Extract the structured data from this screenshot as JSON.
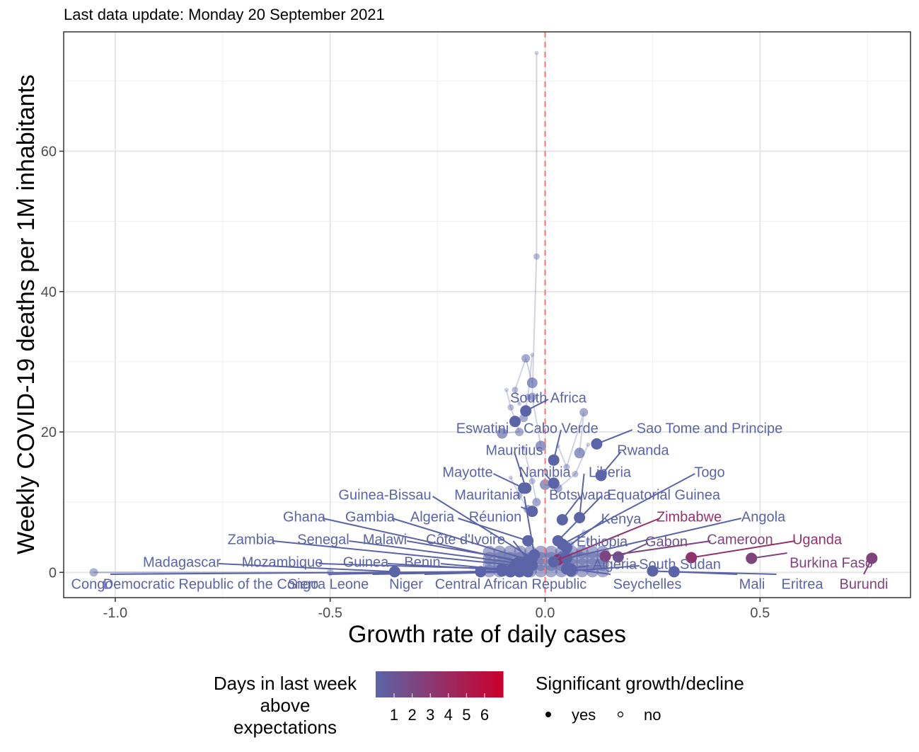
{
  "subtitle": "Last data update: Monday 20 September 2021",
  "chart_data": {
    "type": "scatter",
    "title": "",
    "xlabel": "Growth rate of daily cases",
    "ylabel": "Weekly COVID-19 deaths per 1M inhabitants",
    "xlim": [
      -1.12,
      0.85
    ],
    "ylim": [
      -3.6,
      77
    ],
    "x_ticks": [
      -1.0,
      -0.5,
      0.0,
      0.5
    ],
    "x_tick_labels": [
      "-1.0",
      "-0.5",
      "0.0",
      "0.5"
    ],
    "y_ticks": [
      0,
      20,
      40,
      60
    ],
    "y_tick_labels": [
      "0",
      "20",
      "40",
      "60"
    ],
    "grid": true,
    "reference_line": {
      "x": 0,
      "style": "dashed",
      "color": "#f8766d"
    },
    "colors": {
      "low": "#5b64a6",
      "high": "#c8002d",
      "mid": "#9e4a6e"
    },
    "legend_color": {
      "title_lines": [
        "Days in last week",
        "above",
        "expectations"
      ],
      "labels": [
        "1",
        "2",
        "3",
        "4",
        "5",
        "6"
      ]
    },
    "legend_shape": {
      "title": "Significant growth/decline",
      "entries": [
        "yes",
        "no"
      ]
    },
    "points": [
      {
        "label": "South Africa",
        "x": -0.045,
        "y": 23.0,
        "days": 1
      },
      {
        "label": "Eswatini",
        "x": -0.07,
        "y": 21.5,
        "days": 1
      },
      {
        "label": "Cabo Verde",
        "x": 0.02,
        "y": 16.0,
        "days": 1
      },
      {
        "label": "Sao Tome and Principe",
        "x": 0.12,
        "y": 18.3,
        "days": 1
      },
      {
        "label": "Mauritius",
        "x": -0.045,
        "y": 12.0,
        "days": 1
      },
      {
        "label": "Rwanda",
        "x": 0.13,
        "y": 13.8,
        "days": 1
      },
      {
        "label": "Mayotte",
        "x": -0.05,
        "y": 12.0,
        "days": 1
      },
      {
        "label": "Namibia",
        "x": 0.02,
        "y": 12.7,
        "days": 1
      },
      {
        "label": "Liberia",
        "x": 0.08,
        "y": 7.8,
        "days": 1
      },
      {
        "label": "Togo",
        "x": 0.04,
        "y": 4.0,
        "days": 1
      },
      {
        "label": "Guinea-Bissau",
        "x": -0.03,
        "y": 2.0,
        "days": 1
      },
      {
        "label": "Mauritania",
        "x": -0.025,
        "y": 2.5,
        "days": 1
      },
      {
        "label": "Botswana",
        "x": 0.04,
        "y": 7.5,
        "days": 1
      },
      {
        "label": "Equatorial Guinea",
        "x": 0.03,
        "y": 4.5,
        "days": 1
      },
      {
        "label": "Ghana",
        "x": -0.06,
        "y": 1.5,
        "days": 1
      },
      {
        "label": "Gambia",
        "x": -0.04,
        "y": 1.8,
        "days": 1
      },
      {
        "label": "Algeria",
        "x": -0.04,
        "y": 4.5,
        "days": 1
      },
      {
        "label": "Réunion",
        "x": -0.03,
        "y": 8.7,
        "days": 1
      },
      {
        "label": "Kenya",
        "x": 0.05,
        "y": 3.5,
        "days": 1
      },
      {
        "label": "Zimbabwe",
        "x": 0.03,
        "y": 1.8,
        "days": 4
      },
      {
        "label": "Angola",
        "x": 0.05,
        "y": 2.0,
        "days": 1
      },
      {
        "label": "Zambia",
        "x": -0.07,
        "y": 1.0,
        "days": 1
      },
      {
        "label": "Senegal",
        "x": -0.05,
        "y": 1.2,
        "days": 1
      },
      {
        "label": "Malawi",
        "x": -0.04,
        "y": 1.5,
        "days": 1
      },
      {
        "label": "Côte d'Ivoire",
        "x": -0.03,
        "y": 1.0,
        "days": 1
      },
      {
        "label": "Ethiopia",
        "x": 0.02,
        "y": 1.5,
        "days": 1
      },
      {
        "label": "Gabon",
        "x": 0.17,
        "y": 2.2,
        "days": 2
      },
      {
        "label": "Cameroon",
        "x": 0.14,
        "y": 2.3,
        "days": 3
      },
      {
        "label": "Uganda",
        "x": 0.34,
        "y": 2.1,
        "days": 4
      },
      {
        "label": "Madagascar",
        "x": -0.35,
        "y": 0.1,
        "days": 1
      },
      {
        "label": "Mozambique",
        "x": -0.1,
        "y": 0.5,
        "days": 1
      },
      {
        "label": "Guinea",
        "x": -0.08,
        "y": 0.3,
        "days": 1
      },
      {
        "label": "Benin",
        "x": -0.06,
        "y": 0.2,
        "days": 1
      },
      {
        "label": "Algeria",
        "x": 0.05,
        "y": 0.5,
        "days": 1
      },
      {
        "label": "South Sudan",
        "x": 0.06,
        "y": 0.2,
        "days": 1
      },
      {
        "label": "Burkina Faso",
        "x": 0.48,
        "y": 2.0,
        "days": 3
      },
      {
        "label": "Congo",
        "x": -0.15,
        "y": 0.1,
        "days": 1
      },
      {
        "label": "Democratic Republic of the Congo",
        "x": -0.1,
        "y": 0.2,
        "days": 1
      },
      {
        "label": "Sierra Leone",
        "x": -0.08,
        "y": 0.1,
        "days": 1
      },
      {
        "label": "Niger",
        "x": -0.06,
        "y": 0.1,
        "days": 1
      },
      {
        "label": "Central African Republic",
        "x": -0.04,
        "y": 0.1,
        "days": 1
      },
      {
        "label": "Seychelles",
        "x": 0.06,
        "y": 0.5,
        "days": 1
      },
      {
        "label": "Mali",
        "x": 0.25,
        "y": 0.2,
        "days": 1
      },
      {
        "label": "Eritrea",
        "x": 0.3,
        "y": 0.1,
        "days": 1
      },
      {
        "label": "Burundi",
        "x": 0.76,
        "y": 2.0,
        "days": 3
      }
    ]
  }
}
